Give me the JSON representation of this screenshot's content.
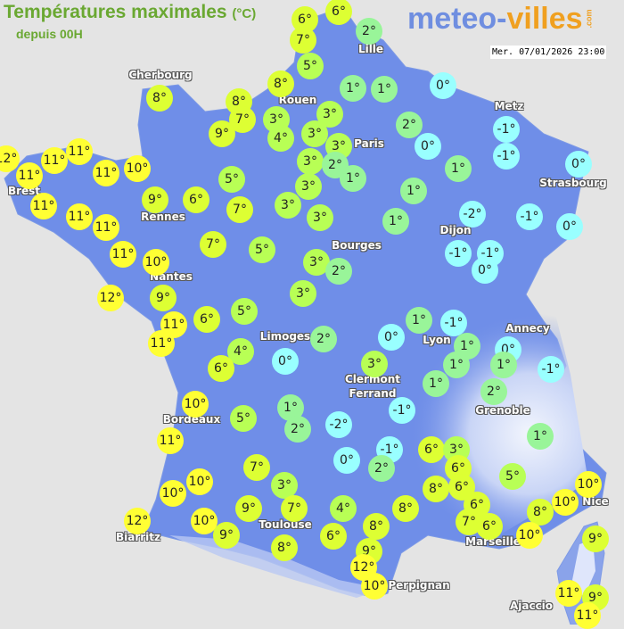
{
  "header": {
    "title": "Températures maximales",
    "title_unit": "(°C)",
    "subtitle": "depuis 00H",
    "logo_part1": "meteo-",
    "logo_part2": "villes",
    "logo_suffix": ".com",
    "datetime": "Mer. 07/01/2026 23:00"
  },
  "colors": {
    "background": "#e4e4e4",
    "land": "#6f8ee8",
    "mountain": "#e8eefc",
    "temp_10_plus": "#ffff33",
    "temp_6_to_9": "#ddff33",
    "temp_3_to_5": "#b8ff55",
    "temp_1_to_2": "#99f599",
    "temp_0_or_below": "#99ffff"
  },
  "cities": [
    "Cherbourg",
    "Lille",
    "Rouen",
    "Paris",
    "Metz",
    "Strasbourg",
    "Brest",
    "Rennes",
    "Dijon",
    "Bourges",
    "Nantes",
    "Annecy",
    "Lyon",
    "Limoges",
    "Clermont\nFerrand",
    "Grenoble",
    "Bordeaux",
    "Nice",
    "Toulouse",
    "Marseille",
    "Biarritz",
    "Perpignan",
    "Ajaccio"
  ],
  "temperatures": [
    6,
    6,
    2,
    7,
    5,
    8,
    8,
    8,
    7,
    1,
    1,
    0,
    3,
    3,
    4,
    3,
    9,
    3,
    2,
    0,
    -1,
    -1,
    11,
    12,
    11,
    11,
    11,
    10,
    3,
    2,
    1,
    1,
    0,
    5,
    3,
    1,
    9,
    6,
    11,
    7,
    3,
    -2,
    -1,
    11,
    11,
    3,
    1,
    0,
    7,
    5,
    -1,
    -1,
    0,
    11,
    10,
    3,
    2,
    12,
    9,
    3,
    5,
    6,
    11,
    11,
    1,
    -1,
    1,
    0,
    2,
    0,
    4,
    1,
    1,
    -1,
    6,
    0,
    3,
    1,
    2,
    10,
    1,
    -1,
    -2,
    5,
    2,
    1,
    11,
    -1,
    6,
    3,
    0,
    2,
    7,
    6,
    5,
    10,
    3,
    6,
    8,
    10,
    10,
    10,
    9,
    7,
    4,
    8,
    6,
    7,
    8,
    12,
    10,
    8,
    6,
    6,
    9,
    10,
    9,
    8,
    9,
    12,
    10,
    11,
    9,
    11
  ],
  "unit_suffix": "°"
}
